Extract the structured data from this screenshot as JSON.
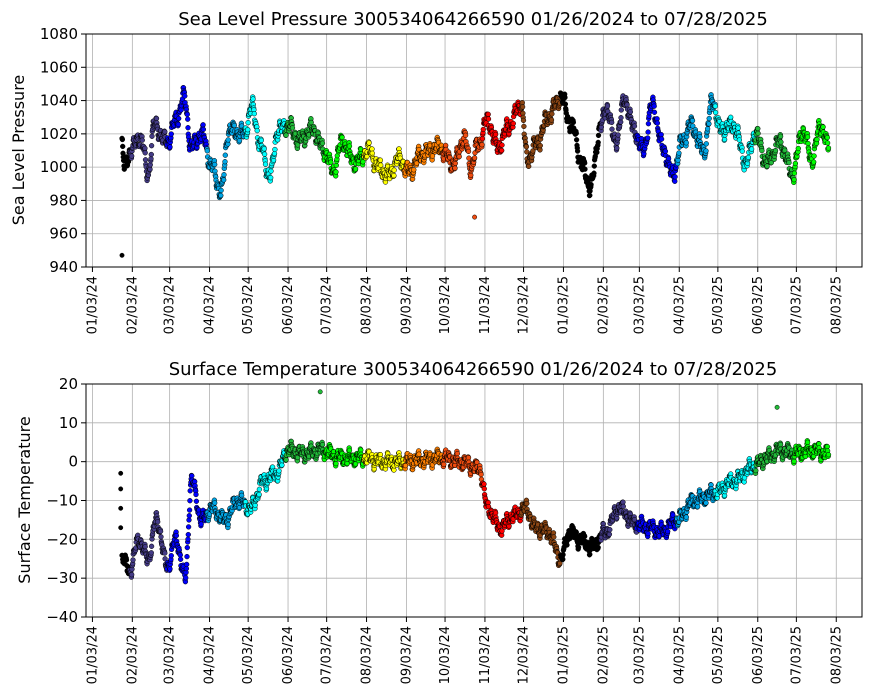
{
  "colors": {
    "grid": "#b0b0b0",
    "frame": "#000000",
    "month_palette": [
      "#000000",
      "#453c87",
      "#0000ff",
      "#00a6e6",
      "#00ffff",
      "#21bb39",
      "#00ff00",
      "#ffff00",
      "#ff8000",
      "#f04d10",
      "#ff0000",
      "#8b4513",
      "#000000",
      "#453c87",
      "#0000ff",
      "#00a6e6",
      "#00ffff",
      "#21bb39",
      "#00ff00"
    ]
  },
  "chart_data": [
    {
      "type": "scatter",
      "title": "Sea Level Pressure 300534064266590  01/26/2024 to 07/28/2025",
      "ylabel": "Sea Level Pressure",
      "xlabel": "",
      "grid": true,
      "ylim": [
        940,
        1080
      ],
      "yticks": [
        940,
        960,
        980,
        1000,
        1020,
        1040,
        1060,
        1080
      ],
      "xlim": [
        "2023-12-29",
        "2025-08-23"
      ],
      "xticks": [
        "01/03/24",
        "02/03/24",
        "03/03/24",
        "04/03/24",
        "05/03/24",
        "06/03/24",
        "07/03/24",
        "08/03/24",
        "09/03/24",
        "10/03/24",
        "11/03/24",
        "12/03/24",
        "01/03/25",
        "02/03/25",
        "03/03/25",
        "04/03/25",
        "05/03/25",
        "06/03/25",
        "07/03/25",
        "08/03/25"
      ],
      "outliers": [
        {
          "x": "2024-01-26",
          "y": 947
        },
        {
          "x": "2024-10-26",
          "y": 970
        }
      ],
      "anchors": [
        {
          "x": "2024-01-26",
          "y": 1015
        },
        {
          "x": "2024-01-28",
          "y": 1000
        },
        {
          "x": "2024-02-03",
          "y": 1012
        },
        {
          "x": "2024-02-10",
          "y": 1018
        },
        {
          "x": "2024-02-15",
          "y": 995
        },
        {
          "x": "2024-02-20",
          "y": 1025
        },
        {
          "x": "2024-03-01",
          "y": 1015
        },
        {
          "x": "2024-03-08",
          "y": 1028
        },
        {
          "x": "2024-03-14",
          "y": 1042
        },
        {
          "x": "2024-03-20",
          "y": 1012
        },
        {
          "x": "2024-03-28",
          "y": 1020
        },
        {
          "x": "2024-04-05",
          "y": 1000
        },
        {
          "x": "2024-04-12",
          "y": 985
        },
        {
          "x": "2024-04-18",
          "y": 1022
        },
        {
          "x": "2024-04-30",
          "y": 1020
        },
        {
          "x": "2024-05-06",
          "y": 1036
        },
        {
          "x": "2024-05-13",
          "y": 1012
        },
        {
          "x": "2024-05-20",
          "y": 994
        },
        {
          "x": "2024-05-26",
          "y": 1022
        },
        {
          "x": "2024-06-03",
          "y": 1025
        },
        {
          "x": "2024-06-12",
          "y": 1016
        },
        {
          "x": "2024-06-22",
          "y": 1023
        },
        {
          "x": "2024-07-01",
          "y": 1010
        },
        {
          "x": "2024-07-08",
          "y": 998
        },
        {
          "x": "2024-07-15",
          "y": 1015
        },
        {
          "x": "2024-07-25",
          "y": 1003
        },
        {
          "x": "2024-08-05",
          "y": 1010
        },
        {
          "x": "2024-08-12",
          "y": 1000
        },
        {
          "x": "2024-08-20",
          "y": 995
        },
        {
          "x": "2024-08-28",
          "y": 1005
        },
        {
          "x": "2024-09-05",
          "y": 997
        },
        {
          "x": "2024-09-15",
          "y": 1008
        },
        {
          "x": "2024-09-28",
          "y": 1012
        },
        {
          "x": "2024-10-10",
          "y": 1002
        },
        {
          "x": "2024-10-18",
          "y": 1018
        },
        {
          "x": "2024-10-23",
          "y": 1000
        },
        {
          "x": "2024-10-28",
          "y": 1012
        },
        {
          "x": "2024-11-05",
          "y": 1028
        },
        {
          "x": "2024-11-13",
          "y": 1012
        },
        {
          "x": "2024-11-22",
          "y": 1025
        },
        {
          "x": "2024-12-01",
          "y": 1038
        },
        {
          "x": "2024-12-06",
          "y": 1005
        },
        {
          "x": "2024-12-14",
          "y": 1015
        },
        {
          "x": "2024-12-22",
          "y": 1030
        },
        {
          "x": "2025-01-01",
          "y": 1042
        },
        {
          "x": "2025-01-10",
          "y": 1024
        },
        {
          "x": "2025-01-18",
          "y": 1000
        },
        {
          "x": "2025-01-24",
          "y": 988
        },
        {
          "x": "2025-02-01",
          "y": 1025
        },
        {
          "x": "2025-02-06",
          "y": 1036
        },
        {
          "x": "2025-02-12",
          "y": 1015
        },
        {
          "x": "2025-02-20",
          "y": 1040
        },
        {
          "x": "2025-02-27",
          "y": 1022
        },
        {
          "x": "2025-03-06",
          "y": 1010
        },
        {
          "x": "2025-03-13",
          "y": 1037
        },
        {
          "x": "2025-03-22",
          "y": 1010
        },
        {
          "x": "2025-03-29",
          "y": 995
        },
        {
          "x": "2025-04-05",
          "y": 1015
        },
        {
          "x": "2025-04-12",
          "y": 1025
        },
        {
          "x": "2025-04-22",
          "y": 1010
        },
        {
          "x": "2025-04-29",
          "y": 1040
        },
        {
          "x": "2025-05-05",
          "y": 1022
        },
        {
          "x": "2025-05-15",
          "y": 1025
        },
        {
          "x": "2025-05-25",
          "y": 1003
        },
        {
          "x": "2025-06-01",
          "y": 1020
        },
        {
          "x": "2025-06-10",
          "y": 1003
        },
        {
          "x": "2025-06-20",
          "y": 1015
        },
        {
          "x": "2025-06-30",
          "y": 996
        },
        {
          "x": "2025-07-08",
          "y": 1022
        },
        {
          "x": "2025-07-15",
          "y": 1005
        },
        {
          "x": "2025-07-22",
          "y": 1025
        },
        {
          "x": "2025-07-28",
          "y": 1012
        }
      ]
    },
    {
      "type": "scatter",
      "title": "Surface Temperature 300534064266590  01/26/2024 to 07/28/2025",
      "ylabel": "Surface Temperature",
      "xlabel": "",
      "grid": true,
      "ylim": [
        -40,
        20
      ],
      "yticks": [
        -40,
        -30,
        -20,
        -10,
        0,
        10,
        20
      ],
      "xlim": [
        "2023-12-29",
        "2025-08-23"
      ],
      "xticks": [
        "01/03/24",
        "02/03/24",
        "03/03/24",
        "04/03/24",
        "05/03/24",
        "06/03/24",
        "07/03/24",
        "08/03/24",
        "09/03/24",
        "10/03/24",
        "11/03/24",
        "12/03/24",
        "01/03/25",
        "02/03/25",
        "03/03/25",
        "04/03/25",
        "05/03/25",
        "06/03/25",
        "07/03/25",
        "08/03/25"
      ],
      "outliers": [
        {
          "x": "2024-01-25",
          "y": -3
        },
        {
          "x": "2024-01-25",
          "y": -7
        },
        {
          "x": "2024-01-25",
          "y": -12
        },
        {
          "x": "2024-01-25",
          "y": -17
        },
        {
          "x": "2024-06-28",
          "y": 18
        },
        {
          "x": "2025-06-18",
          "y": 14
        }
      ],
      "anchors": [
        {
          "x": "2024-01-26",
          "y": -25
        },
        {
          "x": "2024-02-01",
          "y": -28
        },
        {
          "x": "2024-02-08",
          "y": -20
        },
        {
          "x": "2024-02-15",
          "y": -25
        },
        {
          "x": "2024-02-22",
          "y": -15
        },
        {
          "x": "2024-03-01",
          "y": -27
        },
        {
          "x": "2024-03-08",
          "y": -20
        },
        {
          "x": "2024-03-15",
          "y": -30
        },
        {
          "x": "2024-03-20",
          "y": -5
        },
        {
          "x": "2024-03-28",
          "y": -15
        },
        {
          "x": "2024-04-05",
          "y": -12
        },
        {
          "x": "2024-04-15",
          "y": -15
        },
        {
          "x": "2024-04-25",
          "y": -10
        },
        {
          "x": "2024-05-05",
          "y": -12
        },
        {
          "x": "2024-05-15",
          "y": -5
        },
        {
          "x": "2024-05-25",
          "y": -3
        },
        {
          "x": "2024-06-03",
          "y": 3
        },
        {
          "x": "2024-06-15",
          "y": 2
        },
        {
          "x": "2024-06-28",
          "y": 3
        },
        {
          "x": "2024-07-15",
          "y": 1
        },
        {
          "x": "2024-08-01",
          "y": 1
        },
        {
          "x": "2024-08-15",
          "y": 0
        },
        {
          "x": "2024-09-01",
          "y": 0
        },
        {
          "x": "2024-09-15",
          "y": 0.5
        },
        {
          "x": "2024-10-01",
          "y": 1
        },
        {
          "x": "2024-10-15",
          "y": 0
        },
        {
          "x": "2024-10-30",
          "y": -2
        },
        {
          "x": "2024-11-05",
          "y": -12
        },
        {
          "x": "2024-11-15",
          "y": -17
        },
        {
          "x": "2024-11-25",
          "y": -14
        },
        {
          "x": "2024-12-05",
          "y": -12
        },
        {
          "x": "2024-12-12",
          "y": -17
        },
        {
          "x": "2024-12-22",
          "y": -18
        },
        {
          "x": "2025-01-01",
          "y": -25
        },
        {
          "x": "2025-01-08",
          "y": -18
        },
        {
          "x": "2025-01-15",
          "y": -20
        },
        {
          "x": "2025-01-25",
          "y": -22
        },
        {
          "x": "2025-02-05",
          "y": -18
        },
        {
          "x": "2025-02-15",
          "y": -12
        },
        {
          "x": "2025-02-28",
          "y": -16
        },
        {
          "x": "2025-03-10",
          "y": -17
        },
        {
          "x": "2025-03-20",
          "y": -18
        },
        {
          "x": "2025-04-01",
          "y": -15
        },
        {
          "x": "2025-04-15",
          "y": -10
        },
        {
          "x": "2025-05-01",
          "y": -8
        },
        {
          "x": "2025-05-15",
          "y": -5
        },
        {
          "x": "2025-06-01",
          "y": -1
        },
        {
          "x": "2025-06-10",
          "y": 1
        },
        {
          "x": "2025-06-20",
          "y": 3
        },
        {
          "x": "2025-07-01",
          "y": 2
        },
        {
          "x": "2025-07-15",
          "y": 3
        },
        {
          "x": "2025-07-28",
          "y": 2
        }
      ]
    }
  ]
}
